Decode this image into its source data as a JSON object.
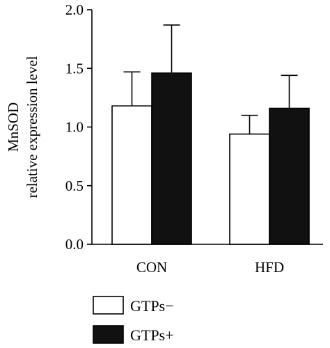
{
  "chart_data": {
    "type": "bar",
    "title": "",
    "xlabel": "",
    "ylabel_lines": [
      "MnSOD",
      "relative expression level"
    ],
    "categories": [
      "CON",
      "HFD"
    ],
    "ylim": [
      0,
      2.0
    ],
    "yticks": [
      "0.0",
      "0.5",
      "1.0",
      "1.5",
      "2.0"
    ],
    "grid": false,
    "legend_position": "bottom-left",
    "series": [
      {
        "name": "GTPs−",
        "color": "#ffffff",
        "values": [
          1.18,
          0.94
        ],
        "errors": [
          0.29,
          0.16
        ]
      },
      {
        "name": "GTPs+",
        "color": "#111111",
        "values": [
          1.46,
          1.16
        ],
        "errors": [
          0.41,
          0.28
        ]
      }
    ]
  }
}
